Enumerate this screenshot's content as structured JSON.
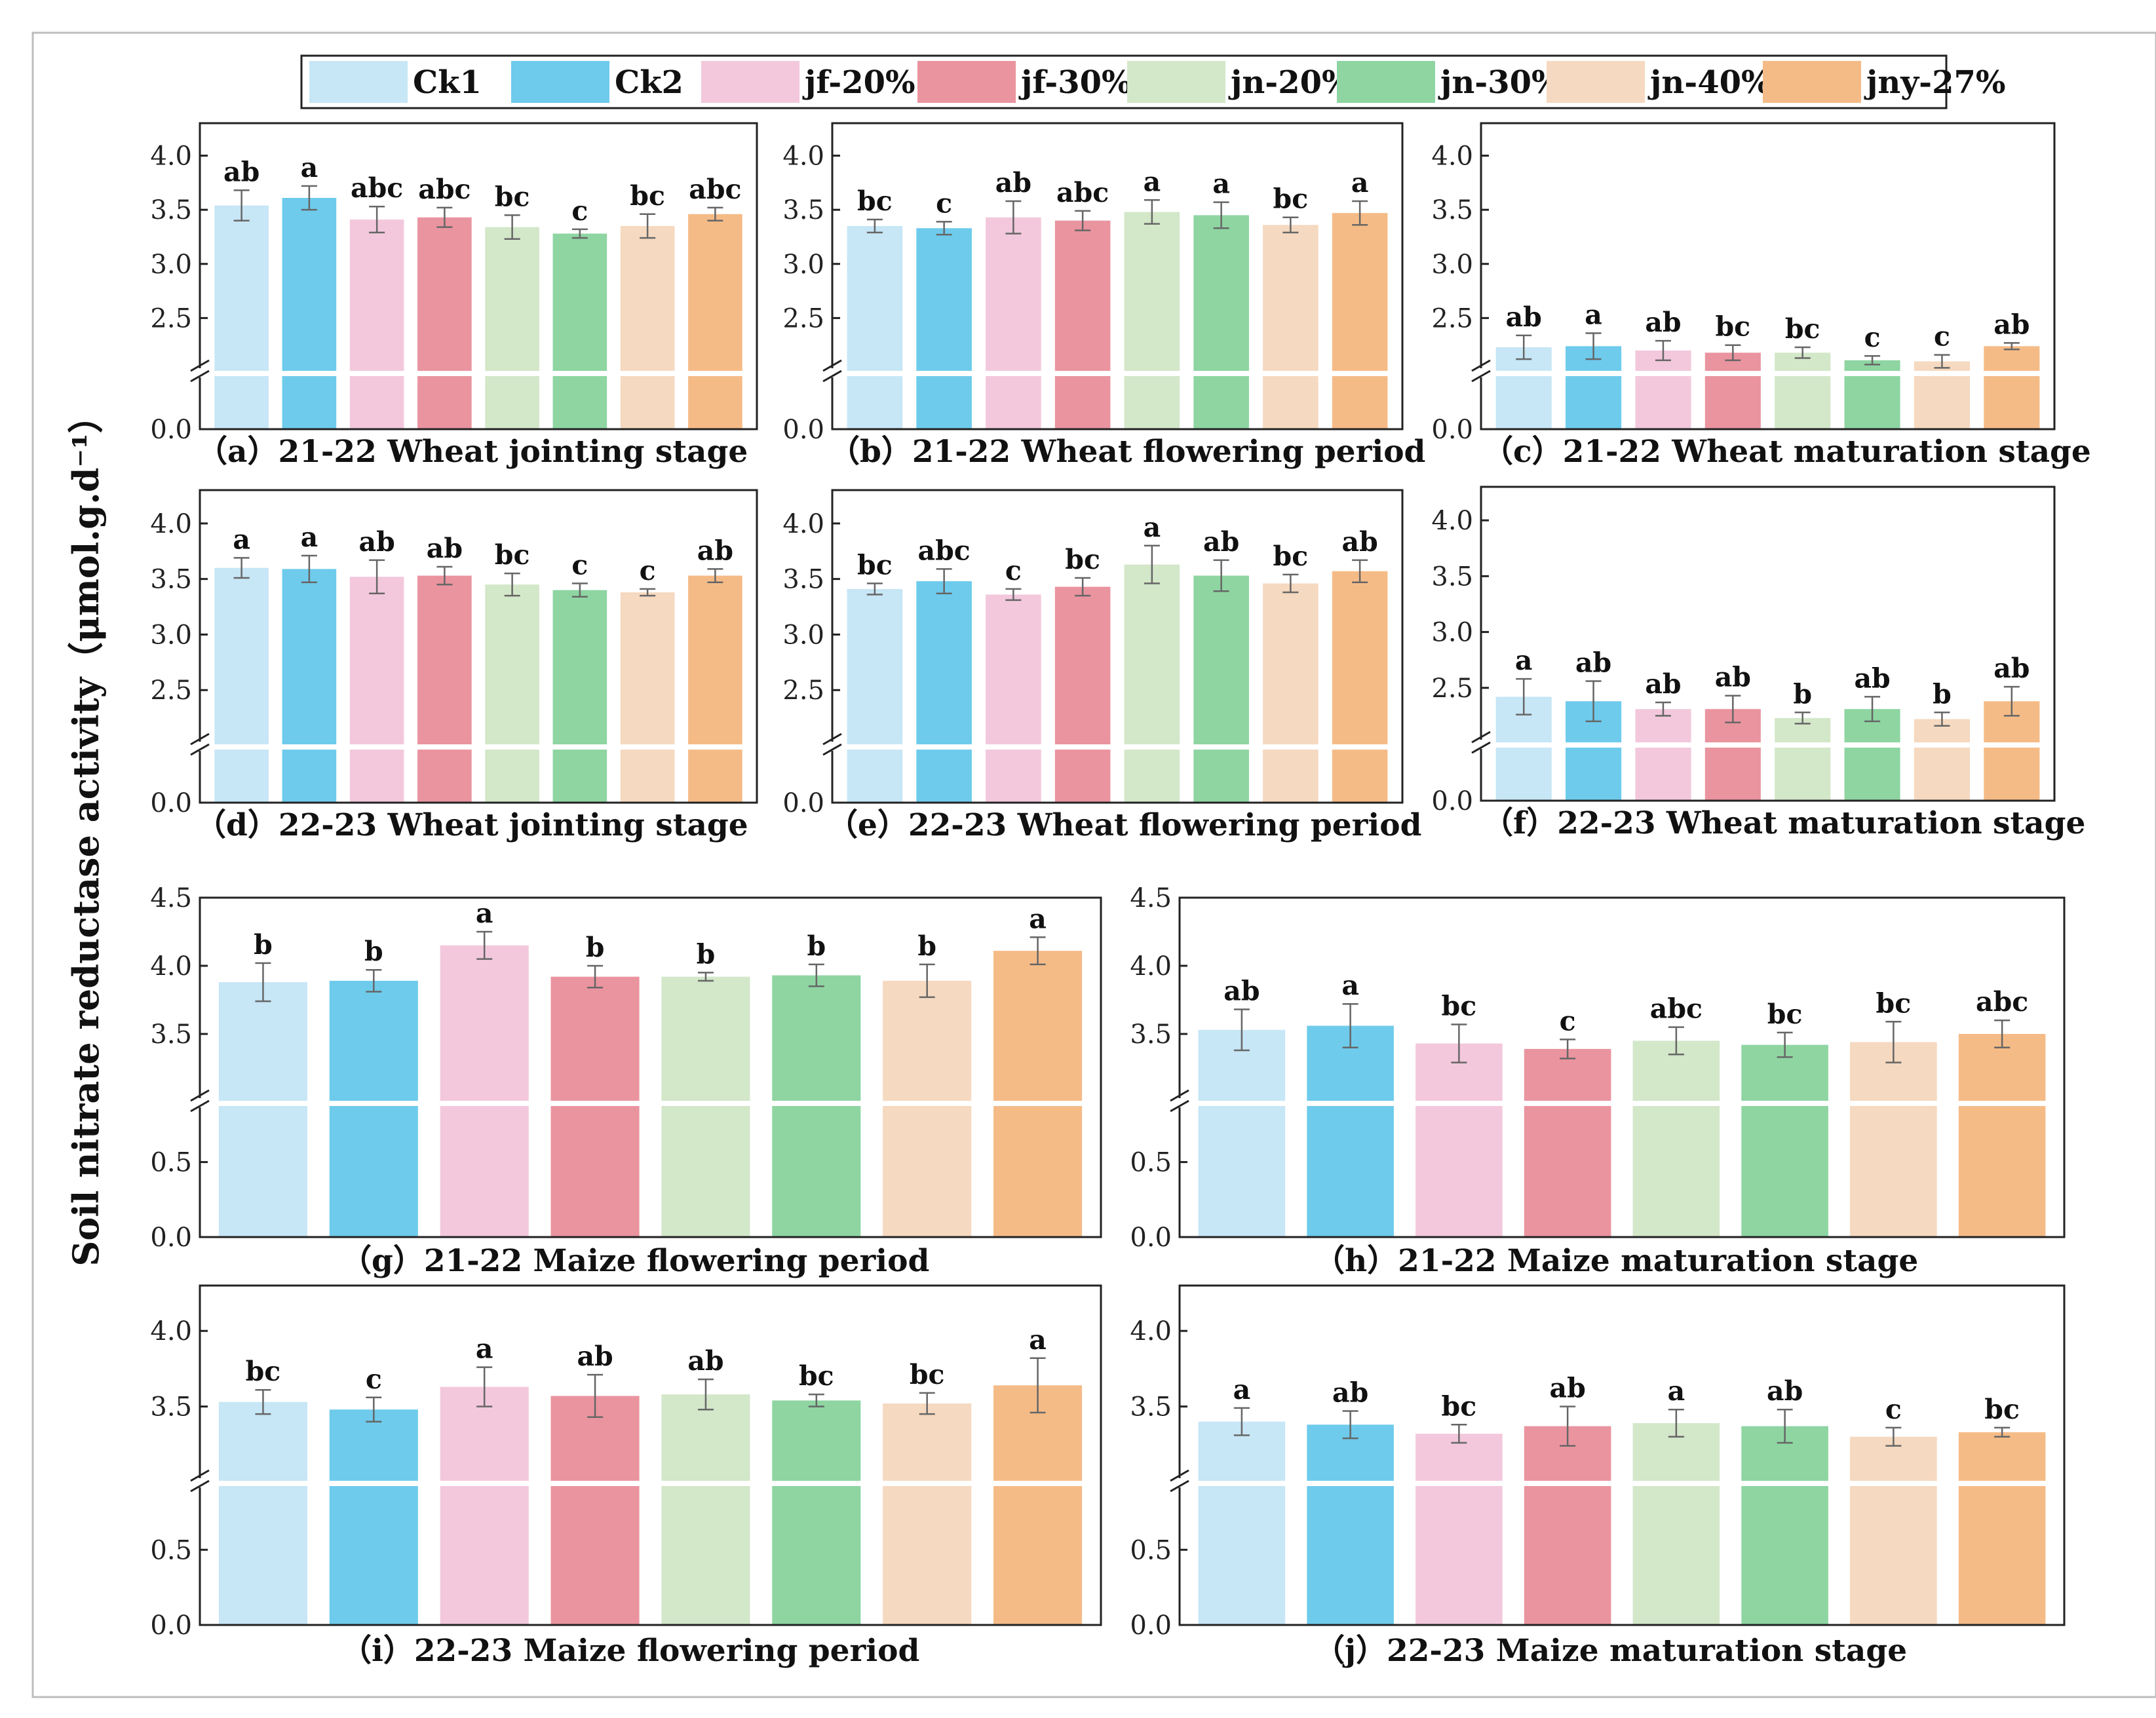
{
  "figure": {
    "y_axis_label": "Soil nitrate reductase activity（μmol.g.d⁻¹）"
  },
  "legend": [
    {
      "label": "Ck1",
      "color": "#c7e6f6"
    },
    {
      "label": "Ck2",
      "color": "#6ecbec"
    },
    {
      "label": "jf-20%",
      "color": "#f3c8dc"
    },
    {
      "label": "jf-30%",
      "color": "#ea949f"
    },
    {
      "label": "jn-20%",
      "color": "#d3e7c9"
    },
    {
      "label": "jn-30%",
      "color": "#8ed5a2"
    },
    {
      "label": "jn-40%",
      "color": "#f5d9c0"
    },
    {
      "label": "jny-27%",
      "color": "#f5bb87"
    }
  ],
  "chart_data": [
    {
      "type": "bar",
      "id": "a",
      "title": "（a）21-22 Wheat jointing stage",
      "categories": [
        "Ck1",
        "Ck2",
        "jf-20%",
        "jf-30%",
        "jn-20%",
        "jn-30%",
        "jn-40%",
        "jny-27%"
      ],
      "values": [
        3.54,
        3.61,
        3.41,
        3.43,
        3.34,
        3.28,
        3.35,
        3.46
      ],
      "errors": [
        0.14,
        0.11,
        0.12,
        0.09,
        0.11,
        0.04,
        0.11,
        0.06
      ],
      "significance": [
        "ab",
        "a",
        "abc",
        "abc",
        "bc",
        "c",
        "bc",
        "abc"
      ],
      "y_ticks_upper": [
        "2.5",
        "3.0",
        "3.5",
        "4.0"
      ],
      "y_tick_lower": "0.0",
      "ylim_upper": [
        2.0,
        4.3
      ],
      "axis_break": true
    },
    {
      "type": "bar",
      "id": "b",
      "title": "（b）21-22 Wheat flowering period",
      "categories": [
        "Ck1",
        "Ck2",
        "jf-20%",
        "jf-30%",
        "jn-20%",
        "jn-30%",
        "jn-40%",
        "jny-27%"
      ],
      "values": [
        3.35,
        3.33,
        3.43,
        3.4,
        3.48,
        3.45,
        3.36,
        3.47
      ],
      "errors": [
        0.06,
        0.06,
        0.15,
        0.09,
        0.11,
        0.12,
        0.07,
        0.11
      ],
      "significance": [
        "bc",
        "c",
        "ab",
        "abc",
        "a",
        "a",
        "bc",
        "a"
      ],
      "y_ticks_upper": [
        "2.5",
        "3.0",
        "3.5",
        "4.0"
      ],
      "y_tick_lower": "0.0",
      "ylim_upper": [
        2.0,
        4.3
      ],
      "axis_break": true
    },
    {
      "type": "bar",
      "id": "c",
      "title": "（c）21-22 Wheat maturation stage",
      "categories": [
        "Ck1",
        "Ck2",
        "jf-20%",
        "jf-30%",
        "jn-20%",
        "jn-30%",
        "jn-40%",
        "jny-27%"
      ],
      "values": [
        2.23,
        2.24,
        2.2,
        2.18,
        2.18,
        2.11,
        2.1,
        2.24
      ],
      "errors": [
        0.11,
        0.12,
        0.09,
        0.07,
        0.05,
        0.04,
        0.06,
        0.03
      ],
      "significance": [
        "ab",
        "a",
        "ab",
        "bc",
        "bc",
        "c",
        "c",
        "ab"
      ],
      "y_ticks_upper": [
        "2.5",
        "3.0",
        "3.5",
        "4.0"
      ],
      "y_tick_lower": "0.0",
      "ylim_upper": [
        2.0,
        4.3
      ],
      "axis_break": true
    },
    {
      "type": "bar",
      "id": "d",
      "title": "（d）22-23 Wheat jointing stage",
      "categories": [
        "Ck1",
        "Ck2",
        "jf-20%",
        "jf-30%",
        "jn-20%",
        "jn-30%",
        "jn-40%",
        "jny-27%"
      ],
      "values": [
        3.6,
        3.59,
        3.52,
        3.53,
        3.45,
        3.4,
        3.38,
        3.53
      ],
      "errors": [
        0.09,
        0.12,
        0.15,
        0.08,
        0.1,
        0.06,
        0.03,
        0.06
      ],
      "significance": [
        "a",
        "a",
        "ab",
        "ab",
        "bc",
        "c",
        "c",
        "ab"
      ],
      "y_ticks_upper": [
        "2.5",
        "3.0",
        "3.5",
        "4.0"
      ],
      "y_tick_lower": "0.0",
      "ylim_upper": [
        2.0,
        4.3
      ],
      "axis_break": true
    },
    {
      "type": "bar",
      "id": "e",
      "title": "（e）22-23 Wheat flowering period",
      "categories": [
        "Ck1",
        "Ck2",
        "jf-20%",
        "jf-30%",
        "jn-20%",
        "jn-30%",
        "jn-40%",
        "jny-27%"
      ],
      "values": [
        3.41,
        3.48,
        3.36,
        3.43,
        3.63,
        3.53,
        3.46,
        3.57
      ],
      "errors": [
        0.05,
        0.11,
        0.05,
        0.08,
        0.17,
        0.14,
        0.08,
        0.1
      ],
      "significance": [
        "bc",
        "abc",
        "c",
        "bc",
        "a",
        "ab",
        "bc",
        "ab"
      ],
      "y_ticks_upper": [
        "2.5",
        "3.0",
        "3.5",
        "4.0"
      ],
      "y_tick_lower": "0.0",
      "ylim_upper": [
        2.0,
        4.3
      ],
      "axis_break": true
    },
    {
      "type": "bar",
      "id": "f",
      "title": "（f）22-23 Wheat maturation stage",
      "categories": [
        "Ck1",
        "Ck2",
        "jf-20%",
        "jf-30%",
        "jn-20%",
        "jn-30%",
        "jn-40%",
        "jny-27%"
      ],
      "values": [
        2.42,
        2.38,
        2.31,
        2.31,
        2.23,
        2.31,
        2.22,
        2.38
      ],
      "errors": [
        0.16,
        0.18,
        0.06,
        0.12,
        0.05,
        0.11,
        0.06,
        0.13
      ],
      "significance": [
        "a",
        "ab",
        "ab",
        "ab",
        "b",
        "ab",
        "b",
        "ab"
      ],
      "y_ticks_upper": [
        "2.5",
        "3.0",
        "3.5",
        "4.0"
      ],
      "y_tick_lower": "0.0",
      "ylim_upper": [
        2.0,
        4.3
      ],
      "axis_break": true
    },
    {
      "type": "bar",
      "id": "g",
      "title": "（g）21-22 Maize flowering period",
      "categories": [
        "Ck1",
        "Ck2",
        "jf-20%",
        "jf-30%",
        "jn-20%",
        "jn-30%",
        "jn-40%",
        "jny-27%"
      ],
      "values": [
        3.88,
        3.89,
        4.15,
        3.92,
        3.92,
        3.93,
        3.89,
        4.11
      ],
      "errors": [
        0.14,
        0.08,
        0.1,
        0.08,
        0.03,
        0.08,
        0.12,
        0.1
      ],
      "significance": [
        "b",
        "b",
        "a",
        "b",
        "b",
        "b",
        "b",
        "a"
      ],
      "y_ticks_upper": [
        "3.5",
        "4.0",
        "4.5"
      ],
      "y_ticks_lower": [
        "0.0",
        "0.5"
      ],
      "ylim_upper": [
        3.0,
        4.5
      ],
      "ylim_lower": [
        0.0,
        0.9
      ],
      "axis_break": true
    },
    {
      "type": "bar",
      "id": "h",
      "title": "（h）21-22 Maize maturation stage",
      "categories": [
        "Ck1",
        "Ck2",
        "jf-20%",
        "jf-30%",
        "jn-20%",
        "jn-30%",
        "jn-40%",
        "jny-27%"
      ],
      "values": [
        3.53,
        3.56,
        3.43,
        3.39,
        3.45,
        3.42,
        3.44,
        3.5
      ],
      "errors": [
        0.15,
        0.16,
        0.14,
        0.07,
        0.1,
        0.09,
        0.15,
        0.1
      ],
      "significance": [
        "ab",
        "a",
        "bc",
        "c",
        "abc",
        "bc",
        "bc",
        "abc"
      ],
      "y_ticks_upper": [
        "3.5",
        "4.0",
        "4.5"
      ],
      "y_ticks_lower": [
        "0.0",
        "0.5"
      ],
      "ylim_upper": [
        3.0,
        4.5
      ],
      "ylim_lower": [
        0.0,
        0.9
      ],
      "axis_break": true
    },
    {
      "type": "bar",
      "id": "i",
      "title": "（i）22-23 Maize flowering period",
      "categories": [
        "Ck1",
        "Ck2",
        "jf-20%",
        "jf-30%",
        "jn-20%",
        "jn-30%",
        "jn-40%",
        "jny-27%"
      ],
      "values": [
        3.53,
        3.48,
        3.63,
        3.57,
        3.58,
        3.54,
        3.52,
        3.64
      ],
      "errors": [
        0.08,
        0.08,
        0.13,
        0.14,
        0.1,
        0.04,
        0.07,
        0.18
      ],
      "significance": [
        "bc",
        "c",
        "a",
        "ab",
        "ab",
        "bc",
        "bc",
        "a"
      ],
      "y_ticks_upper": [
        "3.5",
        "4.0"
      ],
      "y_ticks_lower": [
        "0.0",
        "0.5"
      ],
      "ylim_upper": [
        3.0,
        4.3
      ],
      "ylim_lower": [
        0.0,
        0.95
      ],
      "axis_break": true
    },
    {
      "type": "bar",
      "id": "j",
      "title": "（j）22-23 Maize maturation stage",
      "categories": [
        "Ck1",
        "Ck2",
        "jf-20%",
        "jf-30%",
        "jn-20%",
        "jn-30%",
        "jn-40%",
        "jny-27%"
      ],
      "values": [
        3.4,
        3.38,
        3.32,
        3.37,
        3.39,
        3.37,
        3.3,
        3.33
      ],
      "errors": [
        0.09,
        0.09,
        0.06,
        0.13,
        0.09,
        0.11,
        0.06,
        0.03
      ],
      "significance": [
        "a",
        "ab",
        "bc",
        "ab",
        "a",
        "ab",
        "c",
        "bc"
      ],
      "y_ticks_upper": [
        "3.5",
        "4.0"
      ],
      "y_ticks_lower": [
        "0.0",
        "0.5"
      ],
      "ylim_upper": [
        3.0,
        4.3
      ],
      "ylim_lower": [
        0.0,
        0.95
      ],
      "axis_break": true
    }
  ]
}
